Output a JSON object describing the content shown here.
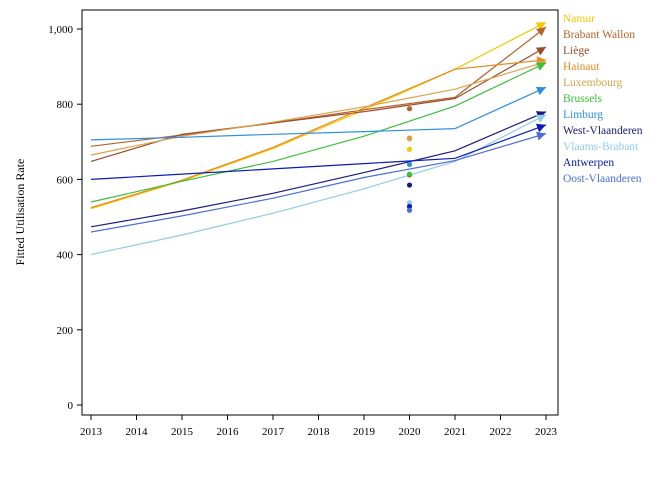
{
  "chart_data": {
    "type": "line",
    "title": "",
    "xlabel": "",
    "ylabel": "Fitted Utilisation Rate",
    "xlim": [
      2013,
      2023
    ],
    "ylim": [
      0,
      1050
    ],
    "x_ticks": [
      "2013",
      "2014",
      "2015",
      "2016",
      "2017",
      "2018",
      "2019",
      "2020",
      "2021",
      "2022",
      "2023"
    ],
    "y_ticks": [
      {
        "value": 0,
        "label": "0"
      },
      {
        "value": 200,
        "label": "200"
      },
      {
        "value": 400,
        "label": "400"
      },
      {
        "value": 600,
        "label": "600"
      },
      {
        "value": 800,
        "label": "800"
      },
      {
        "value": 1000,
        "label": "1,000"
      }
    ],
    "grid": false,
    "legend_position": "right",
    "series": [
      {
        "name": "Namur",
        "color": "#f5c800",
        "x": [
          2013,
          2015,
          2017,
          2019,
          2021,
          2023
        ],
        "y": [
          522,
          596,
          682,
          785,
          893,
          1018
        ],
        "obs_2020": 680
      },
      {
        "name": "Brabant Wallon",
        "color": "#b5622a",
        "x": [
          2013,
          2015,
          2017,
          2019,
          2021,
          2023
        ],
        "y": [
          688,
          718,
          750,
          785,
          818,
          1005
        ],
        "obs_2020": 788
      },
      {
        "name": "Liège",
        "color": "#9b4a2a",
        "x": [
          2013,
          2015,
          2017,
          2019,
          2021,
          2023
        ],
        "y": [
          648,
          720,
          750,
          780,
          815,
          952
        ],
        "obs_2020": 612
      },
      {
        "name": "Hainaut",
        "color": "#e58a1f",
        "x": [
          2013,
          2015,
          2017,
          2019,
          2021,
          2023
        ],
        "y": [
          525,
          598,
          685,
          790,
          893,
          918
        ],
        "obs_2020": 710
      },
      {
        "name": "Luxembourg",
        "color": "#d9a24a",
        "x": [
          2013,
          2015,
          2017,
          2019,
          2021,
          2023
        ],
        "y": [
          665,
          715,
          752,
          793,
          840,
          913
        ],
        "obs_2020": 708
      },
      {
        "name": "Brussels",
        "color": "#3cbf3c",
        "x": [
          2013,
          2015,
          2017,
          2019,
          2021,
          2023
        ],
        "y": [
          540,
          595,
          648,
          715,
          795,
          910
        ],
        "obs_2020": 614
      },
      {
        "name": "Limburg",
        "color": "#2e8fe0",
        "x": [
          2013,
          2015,
          2017,
          2019,
          2021,
          2023
        ],
        "y": [
          705,
          712,
          720,
          727,
          735,
          845
        ],
        "obs_2020": 640
      },
      {
        "name": "West-Vlaanderen",
        "color": "#1a1a80",
        "x": [
          2013,
          2015,
          2017,
          2019,
          2021,
          2023
        ],
        "y": [
          474,
          516,
          563,
          618,
          676,
          780
        ],
        "obs_2020": 585
      },
      {
        "name": "Vlaams-Brabant",
        "color": "#8fcde8",
        "x": [
          2013,
          2015,
          2017,
          2019,
          2021,
          2023
        ],
        "y": [
          400,
          452,
          510,
          575,
          648,
          772
        ],
        "obs_2020": 538
      },
      {
        "name": "Antwerpen",
        "color": "#0a1ab5",
        "x": [
          2013,
          2015,
          2017,
          2019,
          2021,
          2023
        ],
        "y": [
          600,
          614,
          628,
          642,
          656,
          745
        ],
        "obs_2020": 528
      },
      {
        "name": "Oost-Vlaanderen",
        "color": "#4a6ed8",
        "x": [
          2013,
          2015,
          2017,
          2019,
          2021,
          2023
        ],
        "y": [
          460,
          503,
          550,
          605,
          650,
          722
        ],
        "obs_2020": 518
      }
    ]
  }
}
